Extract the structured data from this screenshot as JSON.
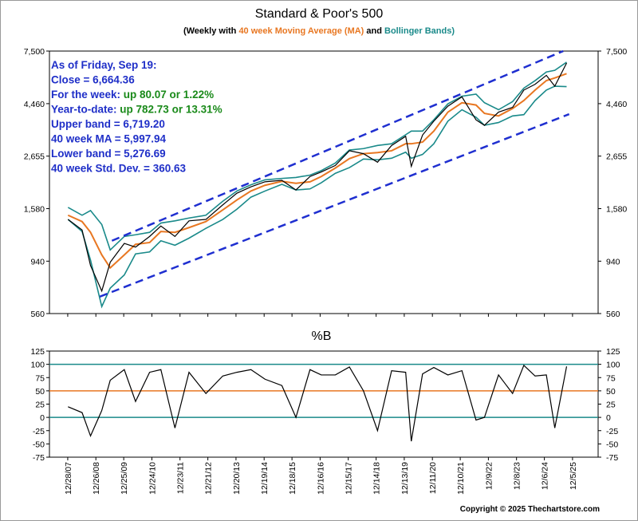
{
  "chart_data": [
    {
      "type": "line",
      "title": "Standard & Poor's 500",
      "subtitle": [
        {
          "text": "(Weekly with ",
          "color": "#000000"
        },
        {
          "text": "40 week Moving Average (MA)",
          "color": "#e87722"
        },
        {
          "text": " and ",
          "color": "#000000"
        },
        {
          "text": "Bollinger Bands)",
          "color": "#1a8a8a"
        }
      ],
      "annotations": [
        [
          {
            "text": "As of Friday, Sep 19:",
            "color": "#1f2fc8"
          }
        ],
        [
          {
            "text": "Close = 6,664.36",
            "color": "#1f2fc8"
          }
        ],
        [
          {
            "text": "For the week: ",
            "color": "#1f2fc8"
          },
          {
            "text": "up 80.07 or 1.22%",
            "color": "#1a8a1a"
          }
        ],
        [
          {
            "text": "Year-to-date: ",
            "color": "#1f2fc8"
          },
          {
            "text": "up 782.73 or 13.31%",
            "color": "#1a8a1a"
          }
        ],
        [
          {
            "text": "Upper band = 6,719.20",
            "color": "#1f2fc8"
          }
        ],
        [
          {
            "text": "40 week MA = 5,997.94",
            "color": "#1f2fc8"
          }
        ],
        [
          {
            "text": "Lower band = 5,276.69",
            "color": "#1f2fc8"
          }
        ],
        [
          {
            "text": "40 week Std. Dev. = 360.63",
            "color": "#1f2fc8"
          }
        ]
      ],
      "log_scale": true,
      "xlim": [
        2007.34,
        2026.84
      ],
      "ylim": [
        560,
        7500
      ],
      "yticks": [
        560,
        940,
        {
          "value": 1580,
          "label": "1,580"
        },
        {
          "value": 2655,
          "label": "2,655"
        },
        {
          "value": 4460,
          "label": "4,460"
        },
        {
          "value": 7500,
          "label": "7,500"
        }
      ],
      "x": [
        2008.0,
        2008.5,
        2008.8,
        2009.2,
        2009.5,
        2010.0,
        2010.4,
        2010.9,
        2011.3,
        2011.8,
        2012.3,
        2012.9,
        2013.5,
        2014.0,
        2014.5,
        2015.0,
        2015.6,
        2016.1,
        2016.6,
        2017.0,
        2017.5,
        2018.0,
        2018.5,
        2019.0,
        2019.5,
        2020.0,
        2020.2,
        2020.6,
        2021.0,
        2021.5,
        2022.0,
        2022.5,
        2022.8,
        2023.3,
        2023.8,
        2024.2,
        2024.6,
        2025.0,
        2025.3,
        2025.72
      ],
      "series": [
        {
          "color": "#1a8a8a",
          "width": 1.6,
          "values": [
            1600,
            1480,
            1550,
            1350,
            1050,
            1200,
            1220,
            1250,
            1370,
            1400,
            1440,
            1480,
            1700,
            1880,
            2000,
            2100,
            2130,
            2150,
            2200,
            2300,
            2480,
            2820,
            2860,
            2950,
            3000,
            3280,
            3400,
            3400,
            3800,
            4450,
            4800,
            4900,
            4500,
            4200,
            4550,
            5200,
            5600,
            6100,
            6200,
            6719.2
          ]
        },
        {
          "color": "#1a8a8a",
          "width": 1.6,
          "values": [
            1420,
            1260,
            950,
            600,
            720,
            820,
            1010,
            1030,
            1150,
            1100,
            1180,
            1300,
            1420,
            1570,
            1770,
            1880,
            2010,
            1900,
            1920,
            2040,
            2240,
            2370,
            2580,
            2560,
            2600,
            2760,
            2600,
            2700,
            3000,
            3750,
            4200,
            3900,
            3600,
            3700,
            3950,
            4000,
            4600,
            5100,
            5300,
            5276.69
          ]
        },
        {
          "color": "#e87722",
          "width": 2,
          "values": [
            1480,
            1390,
            1250,
            1000,
            880,
            1000,
            1110,
            1130,
            1260,
            1250,
            1310,
            1390,
            1560,
            1720,
            1880,
            1990,
            2070,
            2030,
            2060,
            2170,
            2360,
            2590,
            2720,
            2750,
            2800,
            3000,
            3000,
            3050,
            3400,
            4100,
            4500,
            4400,
            4050,
            3950,
            4250,
            4600,
            5100,
            5600,
            5750,
            5997.94
          ]
        },
        {
          "color": "#000000",
          "width": 1.2,
          "values": [
            1420,
            1280,
            900,
            700,
            930,
            1120,
            1080,
            1200,
            1330,
            1200,
            1400,
            1420,
            1640,
            1840,
            1960,
            2060,
            2090,
            1900,
            2170,
            2270,
            2420,
            2800,
            2720,
            2500,
            2950,
            3230,
            2400,
            3270,
            3750,
            4350,
            4770,
            3800,
            3600,
            4100,
            4300,
            5100,
            5400,
            5900,
            5300,
            6664.36
          ]
        }
      ],
      "trend_lines": [
        {
          "color": "#1f2fd0",
          "x": [
            2009.56,
            2025.6
          ],
          "y": [
            1150,
            7500
          ]
        },
        {
          "color": "#1f2fd0",
          "x": [
            2009.13,
            2025.81
          ],
          "y": [
            662,
            4020
          ]
        }
      ]
    },
    {
      "type": "line",
      "title": "%B",
      "xlim": [
        2007.34,
        2026.84
      ],
      "ylim": [
        -75,
        125
      ],
      "yticks": [
        -75,
        -50,
        -25,
        0,
        25,
        50,
        75,
        100,
        125
      ],
      "hlines": [
        {
          "value": 100,
          "color": "#1a8a8a"
        },
        {
          "value": 50,
          "color": "#e87722"
        },
        {
          "value": 0,
          "color": "#1a8a8a"
        }
      ],
      "xticks": [
        {
          "value": 2007.99,
          "label": "12/28/07"
        },
        {
          "value": 2008.99,
          "label": "12/26/08"
        },
        {
          "value": 2009.98,
          "label": "12/25/09"
        },
        {
          "value": 2010.98,
          "label": "12/24/10"
        },
        {
          "value": 2011.98,
          "label": "12/23/11"
        },
        {
          "value": 2012.97,
          "label": "12/21/12"
        },
        {
          "value": 2013.97,
          "label": "12/20/13"
        },
        {
          "value": 2014.97,
          "label": "12/19/14"
        },
        {
          "value": 2015.96,
          "label": "12/18/15"
        },
        {
          "value": 2016.96,
          "label": "12/16/16"
        },
        {
          "value": 2017.96,
          "label": "12/15/17"
        },
        {
          "value": 2018.95,
          "label": "12/14/18"
        },
        {
          "value": 2019.95,
          "label": "12/13/19"
        },
        {
          "value": 2020.95,
          "label": "12/11/20"
        },
        {
          "value": 2021.94,
          "label": "12/10/21"
        },
        {
          "value": 2022.94,
          "label": "12/9/22"
        },
        {
          "value": 2023.94,
          "label": "12/8/23"
        },
        {
          "value": 2024.93,
          "label": "12/6/24"
        },
        {
          "value": 2025.93,
          "label": "12/5/25"
        }
      ],
      "x": [
        2008.0,
        2008.5,
        2008.8,
        2009.2,
        2009.5,
        2010.0,
        2010.4,
        2010.9,
        2011.3,
        2011.8,
        2012.3,
        2012.9,
        2013.5,
        2014.0,
        2014.5,
        2015.0,
        2015.6,
        2016.1,
        2016.6,
        2017.0,
        2017.5,
        2018.0,
        2018.5,
        2019.0,
        2019.5,
        2020.0,
        2020.2,
        2020.6,
        2021.0,
        2021.5,
        2022.0,
        2022.5,
        2022.8,
        2023.3,
        2023.8,
        2024.2,
        2024.6,
        2025.0,
        2025.3,
        2025.72
      ],
      "series": [
        {
          "color": "#000000",
          "width": 1.2,
          "values": [
            20,
            9,
            -35,
            13,
            70,
            90,
            30,
            85,
            90,
            -20,
            85,
            45,
            78,
            85,
            90,
            72,
            60,
            0,
            90,
            80,
            80,
            95,
            50,
            -25,
            88,
            85,
            -45,
            82,
            94,
            80,
            88,
            -5,
            0,
            80,
            45,
            98,
            78,
            80,
            -20,
            96
          ]
        }
      ],
      "copyright": "Copyright © 2025 Thechartstore.com"
    }
  ]
}
